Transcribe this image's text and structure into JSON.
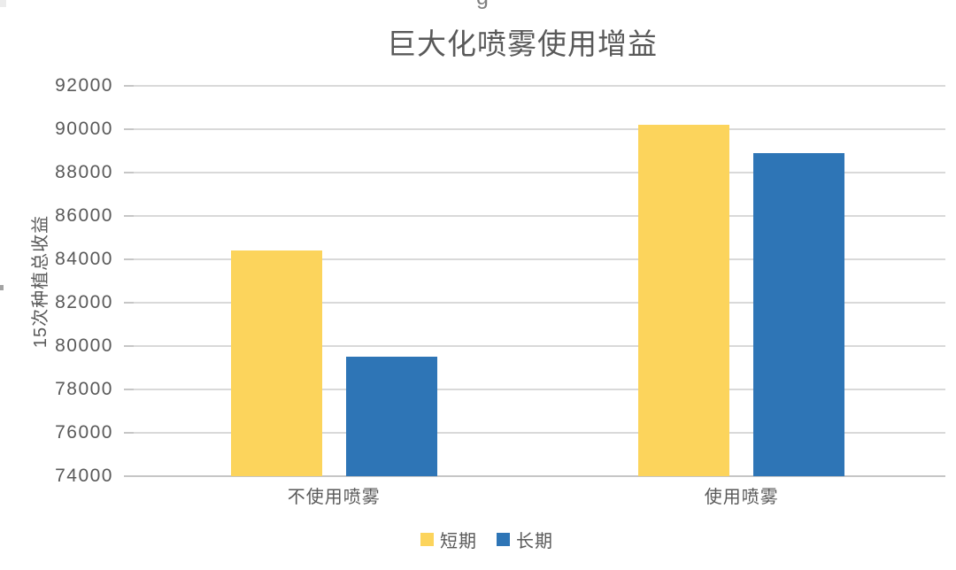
{
  "window": {
    "background": "#FFFFFF"
  },
  "artifacts": {
    "clipped_glyph_top_center": "g"
  },
  "chart_data": {
    "type": "bar",
    "title": "巨大化喷雾使用增益",
    "xlabel": "",
    "ylabel": "15次种植总收益",
    "categories": [
      "不使用喷雾",
      "使用喷雾"
    ],
    "series": [
      {
        "name": "短期",
        "color": "#FCD45C",
        "values": [
          84400,
          90200
        ]
      },
      {
        "name": "长期",
        "color": "#2E75B6",
        "values": [
          79500,
          88900
        ]
      }
    ],
    "ylim": [
      74000,
      92000
    ],
    "yticks": [
      74000,
      76000,
      78000,
      80000,
      82000,
      84000,
      86000,
      88000,
      90000,
      92000
    ],
    "grid": true,
    "legend_position": "bottom",
    "style": {
      "grid_color": "#D9D9D9",
      "axis_color": "#C6C6C6",
      "text_color": "#595959",
      "title_color": "#595959"
    }
  }
}
